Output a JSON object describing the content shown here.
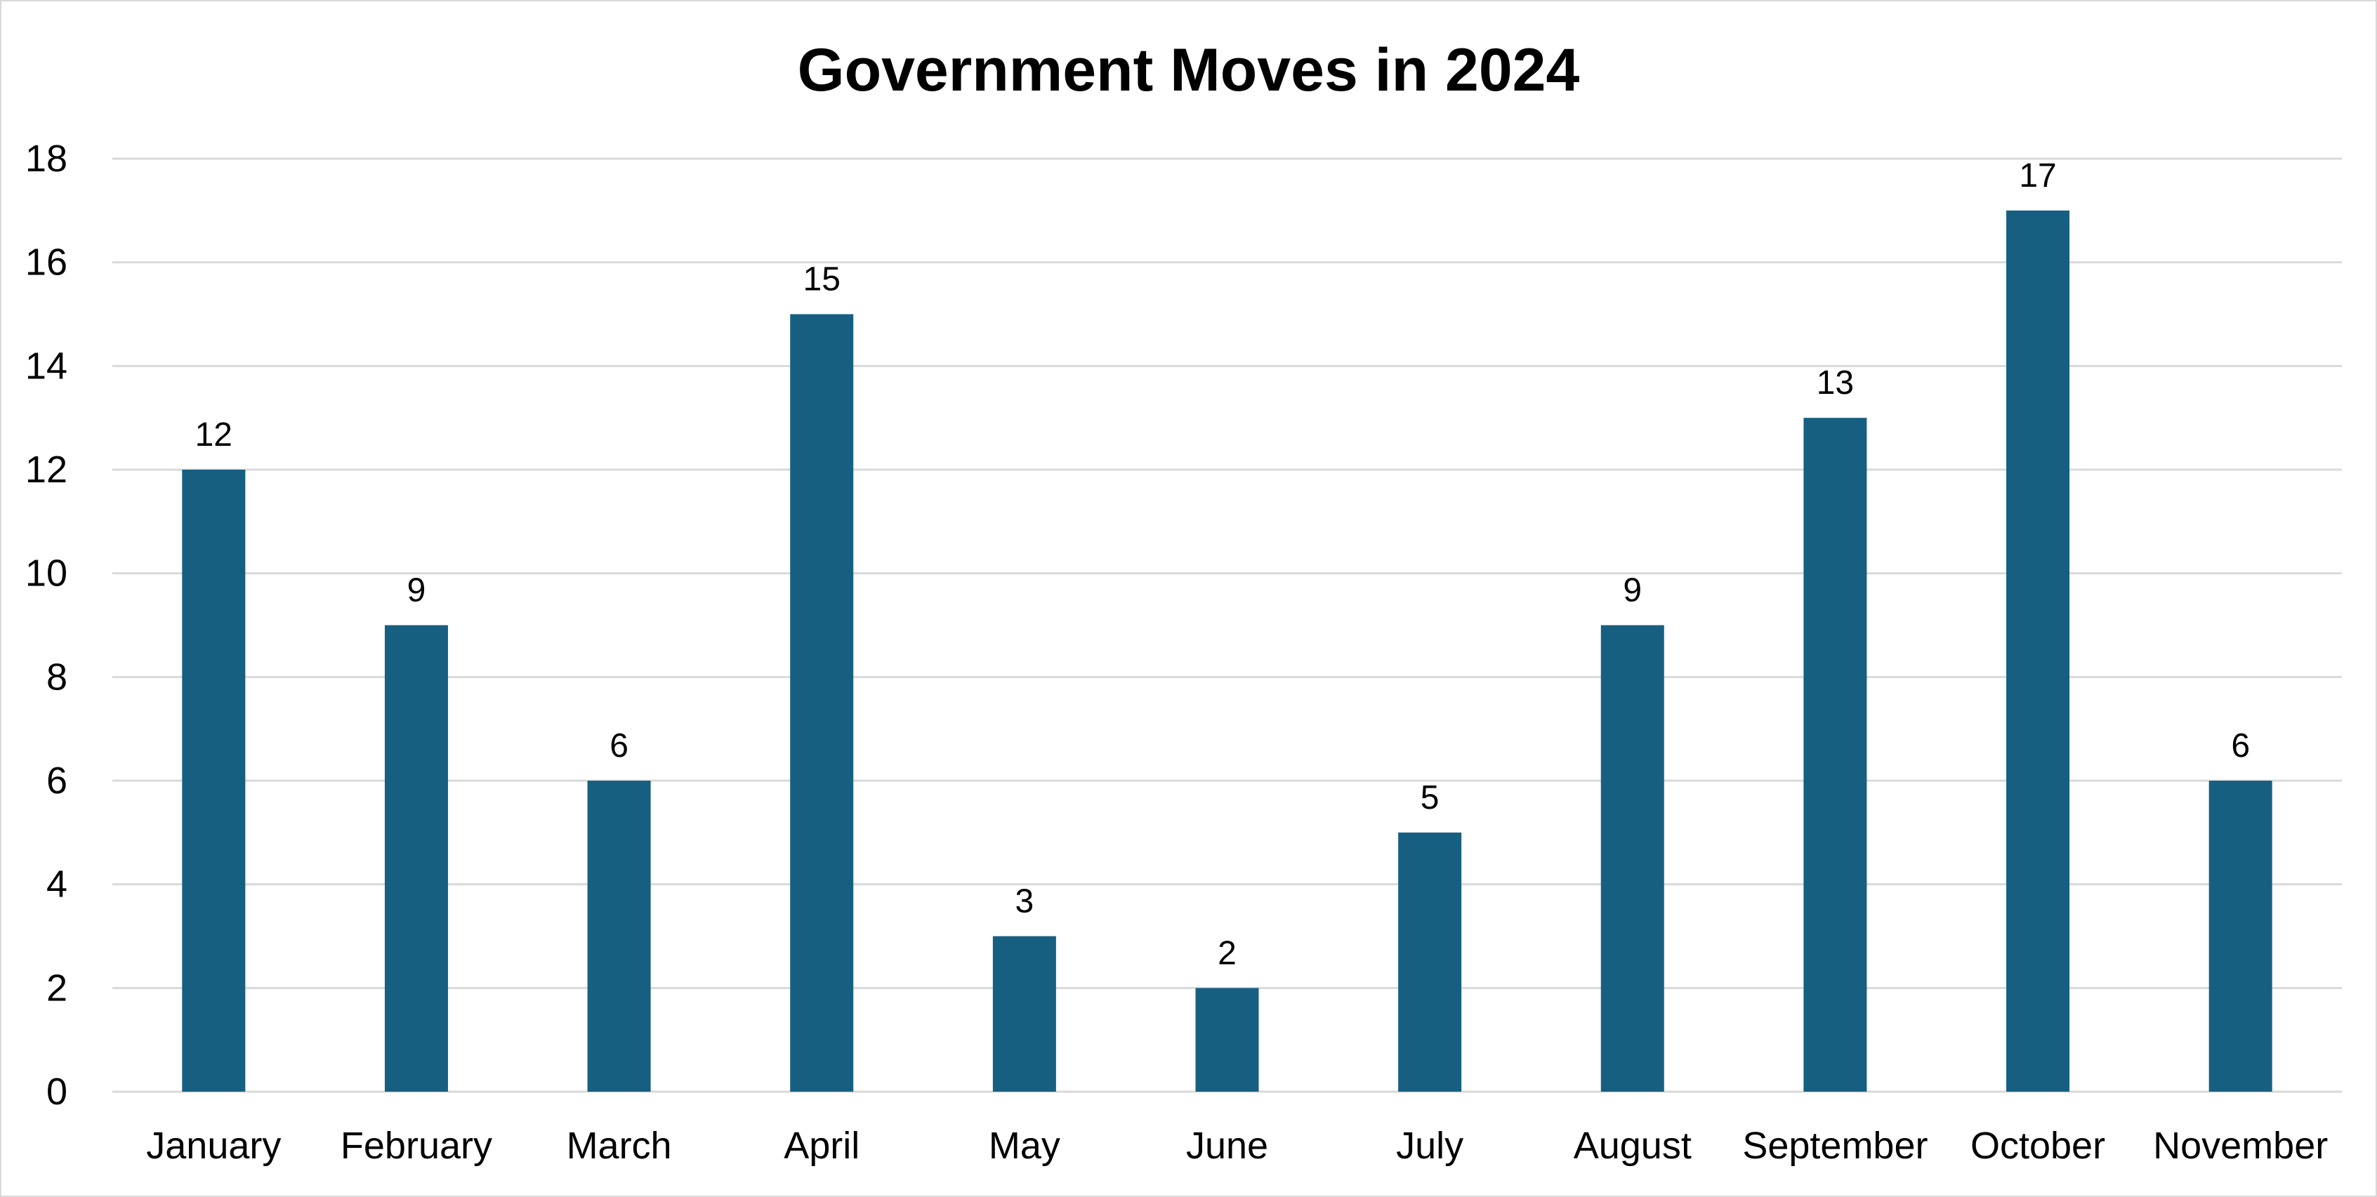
{
  "chart_data": {
    "type": "bar",
    "title": "Government Moves in 2024",
    "categories": [
      "January",
      "February",
      "March",
      "April",
      "May",
      "June",
      "July",
      "August",
      "September",
      "October",
      "November"
    ],
    "values": [
      12,
      9,
      6,
      15,
      3,
      2,
      5,
      9,
      13,
      17,
      6
    ],
    "ylim": [
      0,
      18
    ],
    "yticks": [
      "0",
      "2",
      "4",
      "6",
      "8",
      "10",
      "12",
      "14",
      "16",
      "18"
    ],
    "grid": true,
    "data_labels": true,
    "colors": {
      "bar": "#175f80",
      "gridline": "#d9d9d9",
      "text": "#000000"
    }
  }
}
